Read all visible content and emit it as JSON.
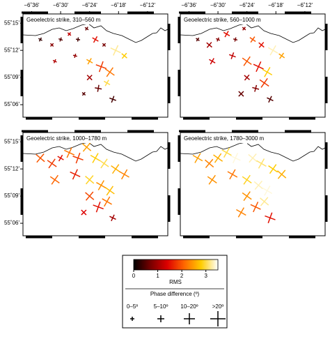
{
  "lon_ticks": [
    {
      "value": -6.6,
      "label": "−6˚36'"
    },
    {
      "value": -6.5,
      "label": "−6˚30'"
    },
    {
      "value": -6.4,
      "label": "−6˚24'"
    },
    {
      "value": -6.3,
      "label": "−6˚18'"
    },
    {
      "value": -6.2,
      "label": "−6˚12'"
    }
  ],
  "lat_ticks": [
    {
      "value": 55.25,
      "label": "55˚15'"
    },
    {
      "value": 55.2,
      "label": "55˚12'"
    },
    {
      "value": 55.15,
      "label": "55˚09'"
    },
    {
      "value": 55.1,
      "label": "55˚06'"
    }
  ],
  "lon_range": [
    -6.63,
    -6.13
  ],
  "lat_range": [
    55.077,
    55.267
  ],
  "sites": [
    {
      "lon": -6.57,
      "lat": 55.22
    },
    {
      "lon": -6.53,
      "lat": 55.21
    },
    {
      "lon": -6.5,
      "lat": 55.22
    },
    {
      "lon": -6.47,
      "lat": 55.23
    },
    {
      "lon": -6.44,
      "lat": 55.22
    },
    {
      "lon": -6.41,
      "lat": 55.24
    },
    {
      "lon": -6.38,
      "lat": 55.22
    },
    {
      "lon": -6.35,
      "lat": 55.21
    },
    {
      "lon": -6.31,
      "lat": 55.2
    },
    {
      "lon": -6.28,
      "lat": 55.19
    },
    {
      "lon": -6.45,
      "lat": 55.19
    },
    {
      "lon": -6.4,
      "lat": 55.18
    },
    {
      "lon": -6.36,
      "lat": 55.17
    },
    {
      "lon": -6.33,
      "lat": 55.16
    },
    {
      "lon": -6.4,
      "lat": 55.15
    },
    {
      "lon": -6.37,
      "lat": 55.13
    },
    {
      "lon": -6.34,
      "lat": 55.14
    },
    {
      "lon": -6.42,
      "lat": 55.12
    },
    {
      "lon": -6.32,
      "lat": 55.11
    },
    {
      "lon": -6.52,
      "lat": 55.18
    }
  ],
  "panels": [
    {
      "title": "Geoelectric strike, 310–560 m",
      "strike": [
        30,
        45,
        20,
        40,
        10,
        35,
        30,
        45,
        25,
        40,
        15,
        30,
        20,
        35,
        45,
        10,
        30,
        40,
        20,
        25
      ],
      "rms": [
        0.3,
        0.8,
        0.5,
        1.2,
        0.4,
        0.6,
        1.5,
        0.7,
        3.2,
        2.8,
        0.9,
        2.5,
        1.8,
        2.2,
        1.0,
        0.6,
        3.0,
        0.5,
        0.4,
        1.1
      ],
      "phase": [
        3,
        3,
        3,
        4,
        3,
        3,
        6,
        4,
        12,
        8,
        3,
        9,
        15,
        10,
        6,
        8,
        7,
        4,
        5,
        3
      ]
    },
    {
      "title": "Geoelectric strike, 560–1000 m",
      "strike": [
        35,
        40,
        25,
        30,
        15,
        40,
        35,
        40,
        30,
        35,
        20,
        35,
        25,
        30,
        40,
        15,
        35,
        45,
        25,
        30
      ],
      "rms": [
        0.5,
        1.0,
        0.8,
        1.5,
        0.7,
        0.9,
        2.0,
        1.5,
        3.3,
        2.5,
        1.2,
        2.0,
        1.5,
        2.8,
        1.0,
        0.8,
        1.8,
        0.6,
        0.5,
        1.3
      ],
      "phase": [
        4,
        5,
        4,
        6,
        4,
        4,
        8,
        9,
        12,
        9,
        7,
        10,
        15,
        12,
        8,
        9,
        10,
        6,
        6,
        5
      ]
    },
    {
      "title": "Geoelectric strike, 1000–1780 m",
      "strike": [
        40,
        35,
        30,
        25,
        20,
        40,
        30,
        35,
        35,
        30,
        25,
        40,
        30,
        35,
        40,
        20,
        30,
        45,
        25,
        35
      ],
      "rms": [
        2.0,
        1.8,
        1.5,
        2.2,
        1.8,
        2.5,
        2.8,
        3.0,
        2.6,
        2.3,
        1.6,
        2.9,
        2.4,
        2.7,
        1.9,
        1.5,
        2.2,
        1.4,
        1.0,
        2.1
      ],
      "phase": [
        15,
        12,
        9,
        16,
        14,
        18,
        15,
        17,
        12,
        10,
        14,
        16,
        18,
        15,
        14,
        12,
        10,
        9,
        6,
        15
      ]
    },
    {
      "title": "Geoelectric strike, 1780–3000 m",
      "strike": [
        30,
        40,
        35,
        30,
        25,
        35,
        40,
        30,
        35,
        40,
        30,
        35,
        40,
        30,
        35,
        25,
        40,
        30,
        20,
        35
      ],
      "rms": [
        2.5,
        2.3,
        2.6,
        3.0,
        3.4,
        3.5,
        3.3,
        3.1,
        2.8,
        2.6,
        2.2,
        2.9,
        3.3,
        3.4,
        2.4,
        2.0,
        3.2,
        2.3,
        1.5,
        2.4
      ],
      "phase": [
        14,
        15,
        16,
        14,
        18,
        19,
        16,
        18,
        15,
        14,
        15,
        18,
        19,
        17,
        16,
        14,
        12,
        13,
        10,
        14
      ]
    }
  ],
  "colorbar": {
    "label": "RMS",
    "range": [
      0,
      3.5
    ],
    "ticks": [
      0,
      1,
      2,
      3
    ]
  },
  "legend": {
    "title": "Phase difference (º)",
    "items": [
      "0–5º",
      "5–10º",
      "10–20º",
      ">20º"
    ]
  }
}
